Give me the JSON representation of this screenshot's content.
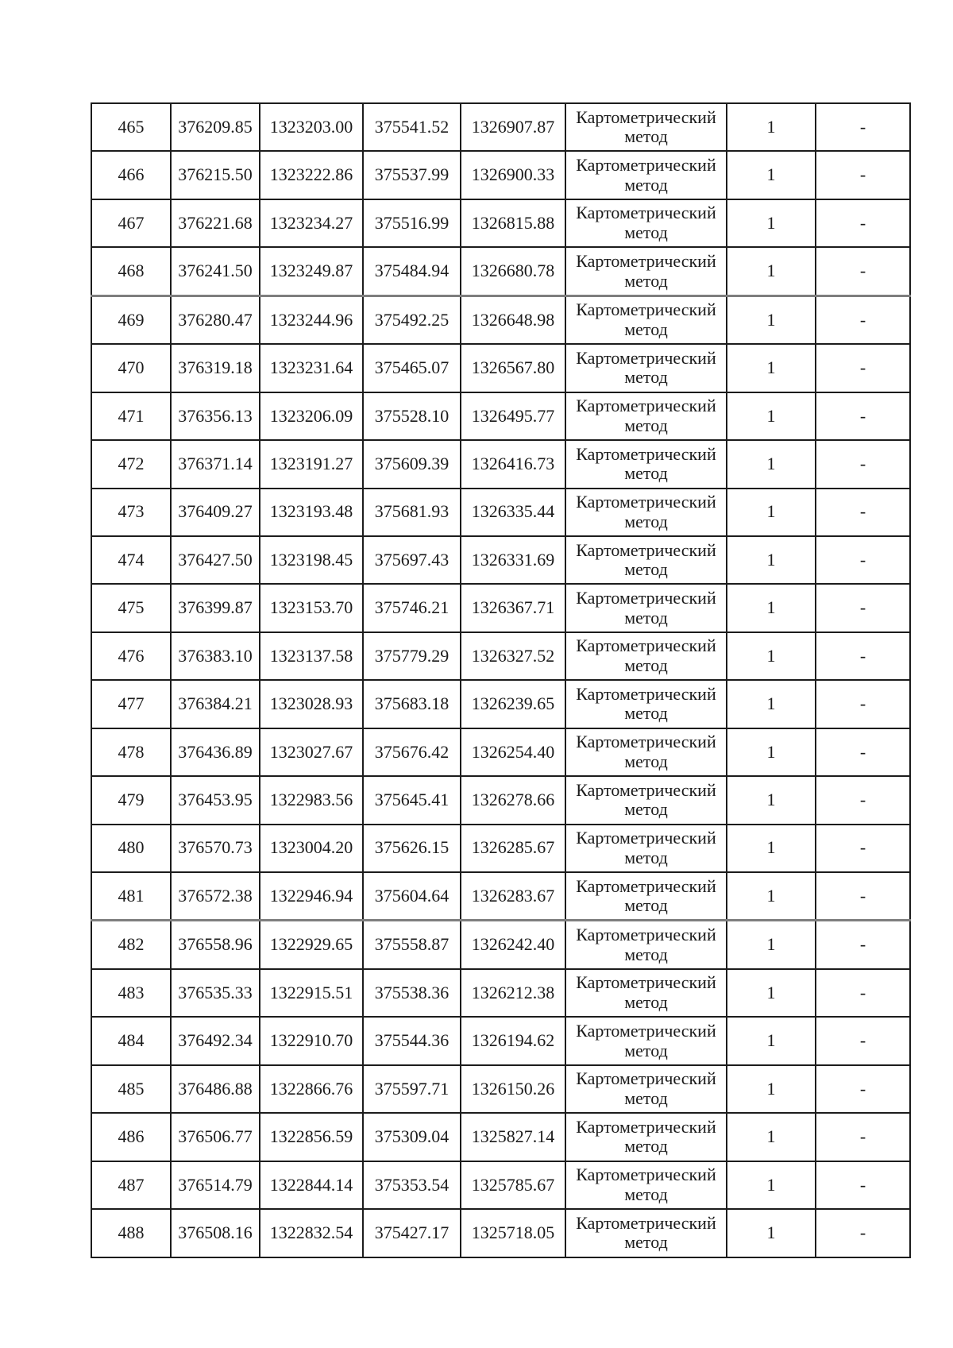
{
  "page": {
    "background": "#ffffff",
    "text_color": "#1b1b1b",
    "line_color": "#1c1c1c",
    "separator_line_color": "#7e7e7e"
  },
  "table": {
    "rows": [
      {
        "cells": [
          "465",
          "376209.85",
          "1323203.00",
          "375541.52",
          "1326907.87",
          "Картометрический метод",
          "1",
          "-"
        ]
      },
      {
        "cells": [
          "466",
          "376215.50",
          "1323222.86",
          "375537.99",
          "1326900.33",
          "Картометрический метод",
          "1",
          "-"
        ]
      },
      {
        "cells": [
          "467",
          "376221.68",
          "1323234.27",
          "375516.99",
          "1326815.88",
          "Картометрический метод",
          "1",
          "-"
        ]
      },
      {
        "cells": [
          "468",
          "376241.50",
          "1323249.87",
          "375484.94",
          "1326680.78",
          "Картометрический метод",
          "1",
          "-"
        ],
        "gray_line_below": true
      },
      {
        "cells": [
          "469",
          "376280.47",
          "1323244.96",
          "375492.25",
          "1326648.98",
          "Картометрический метод",
          "1",
          "-"
        ],
        "gray_line_above": true
      },
      {
        "cells": [
          "470",
          "376319.18",
          "1323231.64",
          "375465.07",
          "1326567.80",
          "Картометрический метод",
          "1",
          "-"
        ]
      },
      {
        "cells": [
          "471",
          "376356.13",
          "1323206.09",
          "375528.10",
          "1326495.77",
          "Картометрический метод",
          "1",
          "-"
        ]
      },
      {
        "cells": [
          "472",
          "376371.14",
          "1323191.27",
          "375609.39",
          "1326416.73",
          "Картометрический метод",
          "1",
          "-"
        ]
      },
      {
        "cells": [
          "473",
          "376409.27",
          "1323193.48",
          "375681.93",
          "1326335.44",
          "Картометрический метод",
          "1",
          "-"
        ]
      },
      {
        "cells": [
          "474",
          "376427.50",
          "1323198.45",
          "375697.43",
          "1326331.69",
          "Картометрический метод",
          "1",
          "-"
        ]
      },
      {
        "cells": [
          "475",
          "376399.87",
          "1323153.70",
          "375746.21",
          "1326367.71",
          "Картометрический метод",
          "1",
          "-"
        ]
      },
      {
        "cells": [
          "476",
          "376383.10",
          "1323137.58",
          "375779.29",
          "1326327.52",
          "Картометрический метод",
          "1",
          "-"
        ]
      },
      {
        "cells": [
          "477",
          "376384.21",
          "1323028.93",
          "375683.18",
          "1326239.65",
          "Картометрический метод",
          "1",
          "-"
        ]
      },
      {
        "cells": [
          "478",
          "376436.89",
          "1323027.67",
          "375676.42",
          "1326254.40",
          "Картометрический метод",
          "1",
          "-"
        ]
      },
      {
        "cells": [
          "479",
          "376453.95",
          "1322983.56",
          "375645.41",
          "1326278.66",
          "Картометрический метод",
          "1",
          "-"
        ]
      },
      {
        "cells": [
          "480",
          "376570.73",
          "1323004.20",
          "375626.15",
          "1326285.67",
          "Картометрический метод",
          "1",
          "-"
        ]
      },
      {
        "cells": [
          "481",
          "376572.38",
          "1322946.94",
          "375604.64",
          "1326283.67",
          "Картометрический метод",
          "1",
          "-"
        ],
        "gray_line_below": true
      },
      {
        "cells": [
          "482",
          "376558.96",
          "1322929.65",
          "375558.87",
          "1326242.40",
          "Картометрический метод",
          "1",
          "-"
        ],
        "gray_line_above": true
      },
      {
        "cells": [
          "483",
          "376535.33",
          "1322915.51",
          "375538.36",
          "1326212.38",
          "Картометрический метод",
          "1",
          "-"
        ]
      },
      {
        "cells": [
          "484",
          "376492.34",
          "1322910.70",
          "375544.36",
          "1326194.62",
          "Картометрический метод",
          "1",
          "-"
        ]
      },
      {
        "cells": [
          "485",
          "376486.88",
          "1322866.76",
          "375597.71",
          "1326150.26",
          "Картометрический метод",
          "1",
          "-"
        ]
      },
      {
        "cells": [
          "486",
          "376506.77",
          "1322856.59",
          "375309.04",
          "1325827.14",
          "Картометрический метод",
          "1",
          "-"
        ]
      },
      {
        "cells": [
          "487",
          "376514.79",
          "1322844.14",
          "375353.54",
          "1325785.67",
          "Картометрический метод",
          "1",
          "-"
        ]
      },
      {
        "cells": [
          "488",
          "376508.16",
          "1322832.54",
          "375427.17",
          "1325718.05",
          "Картометрический метод",
          "1",
          "-"
        ]
      }
    ]
  }
}
